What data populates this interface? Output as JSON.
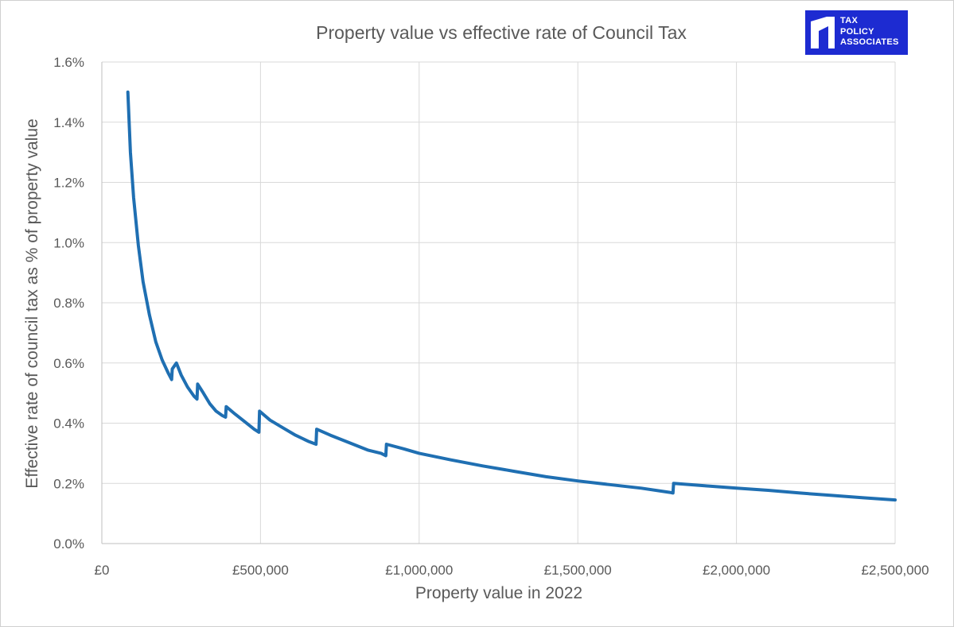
{
  "chart_data": {
    "type": "line",
    "title": "Property value vs effective rate of Council Tax",
    "xlabel": "Property value in 2022",
    "ylabel": "Effective rate of council tax as % of property value",
    "xlim": [
      0,
      2500000
    ],
    "ylim": [
      0,
      1.6
    ],
    "x_ticks": [
      0,
      500000,
      1000000,
      1500000,
      2000000,
      2500000
    ],
    "x_tick_labels": [
      "£0",
      "£500,000",
      "£1,000,000",
      "£1,500,000",
      "£2,000,000",
      "£2,500,000"
    ],
    "y_ticks": [
      0,
      0.2,
      0.4,
      0.6,
      0.8,
      1.0,
      1.2,
      1.4,
      1.6
    ],
    "y_tick_labels": [
      "0.0%",
      "0.2%",
      "0.4%",
      "0.6%",
      "0.8%",
      "1.0%",
      "1.2%",
      "1.4%",
      "1.6%"
    ],
    "grid": true,
    "legend": "none",
    "series": [
      {
        "color": "#1f6fb2",
        "x": [
          82000,
          90000,
          100000,
          115000,
          130000,
          150000,
          170000,
          190000,
          210000,
          220000,
          222000,
          235000,
          250000,
          270000,
          290000,
          300000,
          302000,
          320000,
          340000,
          360000,
          380000,
          390000,
          392000,
          420000,
          450000,
          480000,
          495000,
          497000,
          530000,
          570000,
          610000,
          650000,
          675000,
          677000,
          720000,
          780000,
          840000,
          880000,
          895000,
          897000,
          950000,
          1000000,
          1100000,
          1200000,
          1300000,
          1400000,
          1500000,
          1600000,
          1700000,
          1790000,
          1800000,
          1802000,
          1900000,
          2000000,
          2100000,
          2200000,
          2300000,
          2400000,
          2500000
        ],
        "y": [
          1.5,
          1.3,
          1.15,
          0.99,
          0.87,
          0.76,
          0.67,
          0.61,
          0.565,
          0.545,
          0.58,
          0.6,
          0.56,
          0.52,
          0.49,
          0.48,
          0.53,
          0.5,
          0.465,
          0.44,
          0.425,
          0.42,
          0.455,
          0.43,
          0.405,
          0.38,
          0.37,
          0.44,
          0.41,
          0.385,
          0.36,
          0.34,
          0.33,
          0.38,
          0.36,
          0.335,
          0.31,
          0.3,
          0.292,
          0.33,
          0.315,
          0.3,
          0.278,
          0.258,
          0.24,
          0.222,
          0.208,
          0.196,
          0.184,
          0.17,
          0.168,
          0.2,
          0.192,
          0.184,
          0.177,
          0.168,
          0.16,
          0.152,
          0.145
        ]
      }
    ]
  },
  "logo": {
    "text": "TAX\nPOLICY\nASSOCIATES",
    "background": "#1d2bd1"
  }
}
